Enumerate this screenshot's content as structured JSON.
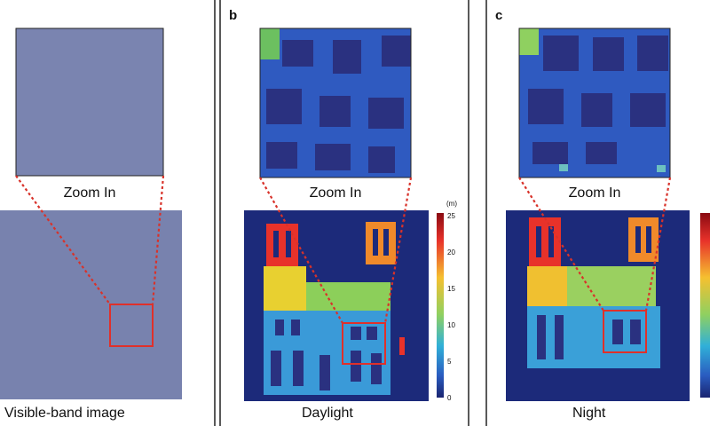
{
  "panels": [
    {
      "zoom_label": "Zoom In",
      "caption": "Visible-band image"
    },
    {
      "label": "b",
      "zoom_label": "Zoom In",
      "caption": "Daylight",
      "colorbar": {
        "unit": "(m)",
        "ticks": [
          0,
          5,
          10,
          15,
          20,
          25
        ]
      }
    },
    {
      "label": "c",
      "zoom_label": "Zoom In",
      "caption": "Night"
    }
  ]
}
